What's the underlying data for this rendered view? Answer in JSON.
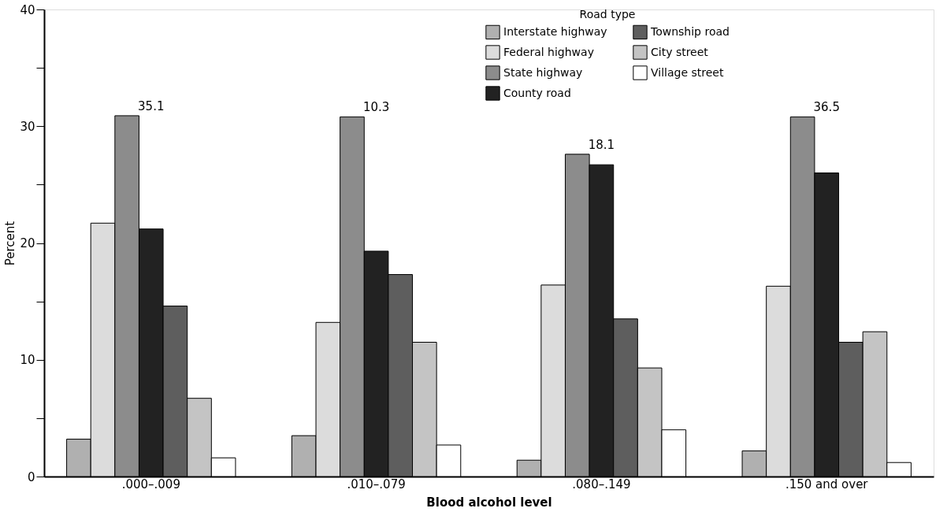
{
  "chart_data": {
    "type": "bar",
    "xlabel": "Blood alcohol level",
    "ylabel": "Percent",
    "legend_title": "Road type",
    "categories": [
      ".000–.009",
      ".010–.079",
      ".080–.149",
      ".150 and over"
    ],
    "series": [
      {
        "name": "Interstate highway",
        "color": "#b0b0b0",
        "values": [
          3.2,
          3.5,
          1.4,
          2.2
        ]
      },
      {
        "name": "Federal highway",
        "color": "#dcdcdc",
        "values": [
          21.7,
          13.2,
          16.4,
          16.3
        ]
      },
      {
        "name": "State highway",
        "color": "#8c8c8c",
        "values": [
          30.9,
          30.8,
          27.6,
          30.8
        ]
      },
      {
        "name": "County road",
        "color": "#222222",
        "values": [
          21.2,
          19.3,
          26.7,
          26.0
        ]
      },
      {
        "name": "Township road",
        "color": "#5e5e5e",
        "values": [
          14.6,
          17.3,
          13.5,
          11.5
        ]
      },
      {
        "name": "City street",
        "color": "#c4c4c4",
        "values": [
          6.7,
          11.5,
          9.3,
          12.4
        ]
      },
      {
        "name": "Village street",
        "color": "#ffffff",
        "values": [
          1.6,
          2.7,
          4.0,
          1.2
        ]
      }
    ],
    "ylim": [
      0,
      40
    ],
    "yticks": [
      0,
      {
        "value": 5,
        "label": null
      },
      10,
      {
        "value": 15,
        "label": null
      },
      20,
      {
        "value": 25,
        "label": null
      },
      30,
      {
        "value": 35,
        "label": null
      },
      40
    ],
    "annotations": [
      "35.1",
      "10.3",
      "18.1",
      "36.5"
    ],
    "grid": false,
    "legend": "top"
  }
}
